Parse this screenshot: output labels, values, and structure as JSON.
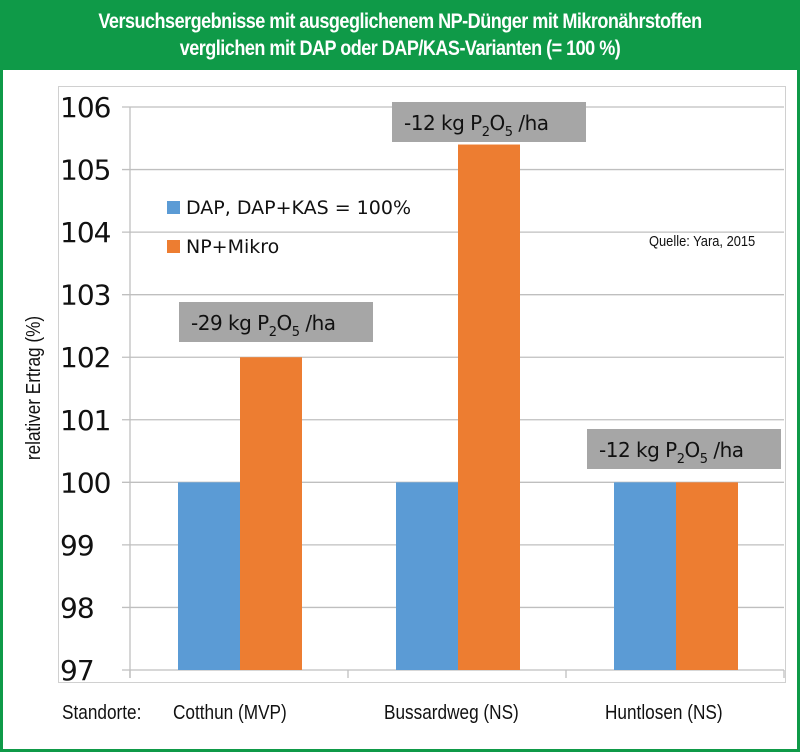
{
  "header": {
    "line1": "Versuchsergebnisse mit ausgeglichenem NP-Dünger mit Mikronährstoffen",
    "line2": "verglichen mit DAP oder DAP/KAS-Varianten (= 100 %)"
  },
  "colors": {
    "brand_green": "#0f9a48",
    "series_dap": "#5b9bd5",
    "series_np": "#ed7d31",
    "annotation_bg": "#a6a6a6"
  },
  "x_prefix": "Standorte:",
  "chart_data": {
    "type": "bar",
    "title": "Versuchsergebnisse mit ausgeglichenem NP-Dünger mit Mikronährstoffen verglichen mit DAP oder DAP/KAS-Varianten (= 100 %)",
    "xlabel": "Standorte:",
    "ylabel": "relativer Ertrag  (%)",
    "ylim": [
      97,
      106
    ],
    "yticks": [
      "97",
      "98",
      "99",
      "100",
      "101",
      "102",
      "103",
      "104",
      "105",
      "106"
    ],
    "grid": true,
    "legend_position": "upper-left",
    "categories": [
      "Cotthun (MVP)",
      "Bussardweg (NS)",
      "Huntlosen (NS)"
    ],
    "series": [
      {
        "name": "DAP, DAP+KAS = 100%",
        "values": [
          100,
          100,
          100
        ]
      },
      {
        "name": "NP+Mikro",
        "values": [
          102,
          105.4,
          100
        ]
      }
    ],
    "annotations": [
      {
        "category": "Cotthun (MVP)",
        "prefix": "-29 kg P",
        "sub1": "2",
        "mid": "O",
        "sub2": "5",
        "suffix": " /ha"
      },
      {
        "category": "Bussardweg (NS)",
        "prefix": "-12 kg P",
        "sub1": "2",
        "mid": "O",
        "sub2": "5",
        "suffix": " /ha"
      },
      {
        "category": "Huntlosen (NS)",
        "prefix": "-12 kg P",
        "sub1": "2",
        "mid": "O",
        "sub2": "5",
        "suffix": " /ha"
      }
    ],
    "source_note": "Quelle: Yara, 2015"
  }
}
